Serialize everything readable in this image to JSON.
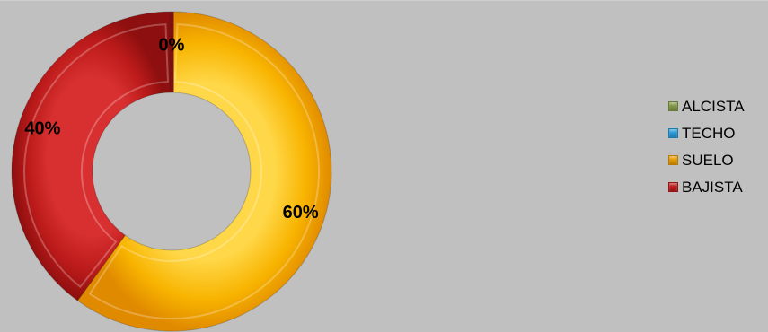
{
  "chart_data": {
    "type": "pie",
    "donut": true,
    "categories": [
      "ALCISTA",
      "TECHO",
      "SUELO",
      "BAJISTA"
    ],
    "values": [
      0,
      0,
      60,
      40
    ],
    "data_labels": [
      "",
      "",
      "60%",
      "40%"
    ],
    "zero_label": "0%",
    "colors": [
      "#8aa34a",
      "#2aa3e6",
      "#f4a400",
      "#c41c1c"
    ],
    "legend_position": "right"
  }
}
